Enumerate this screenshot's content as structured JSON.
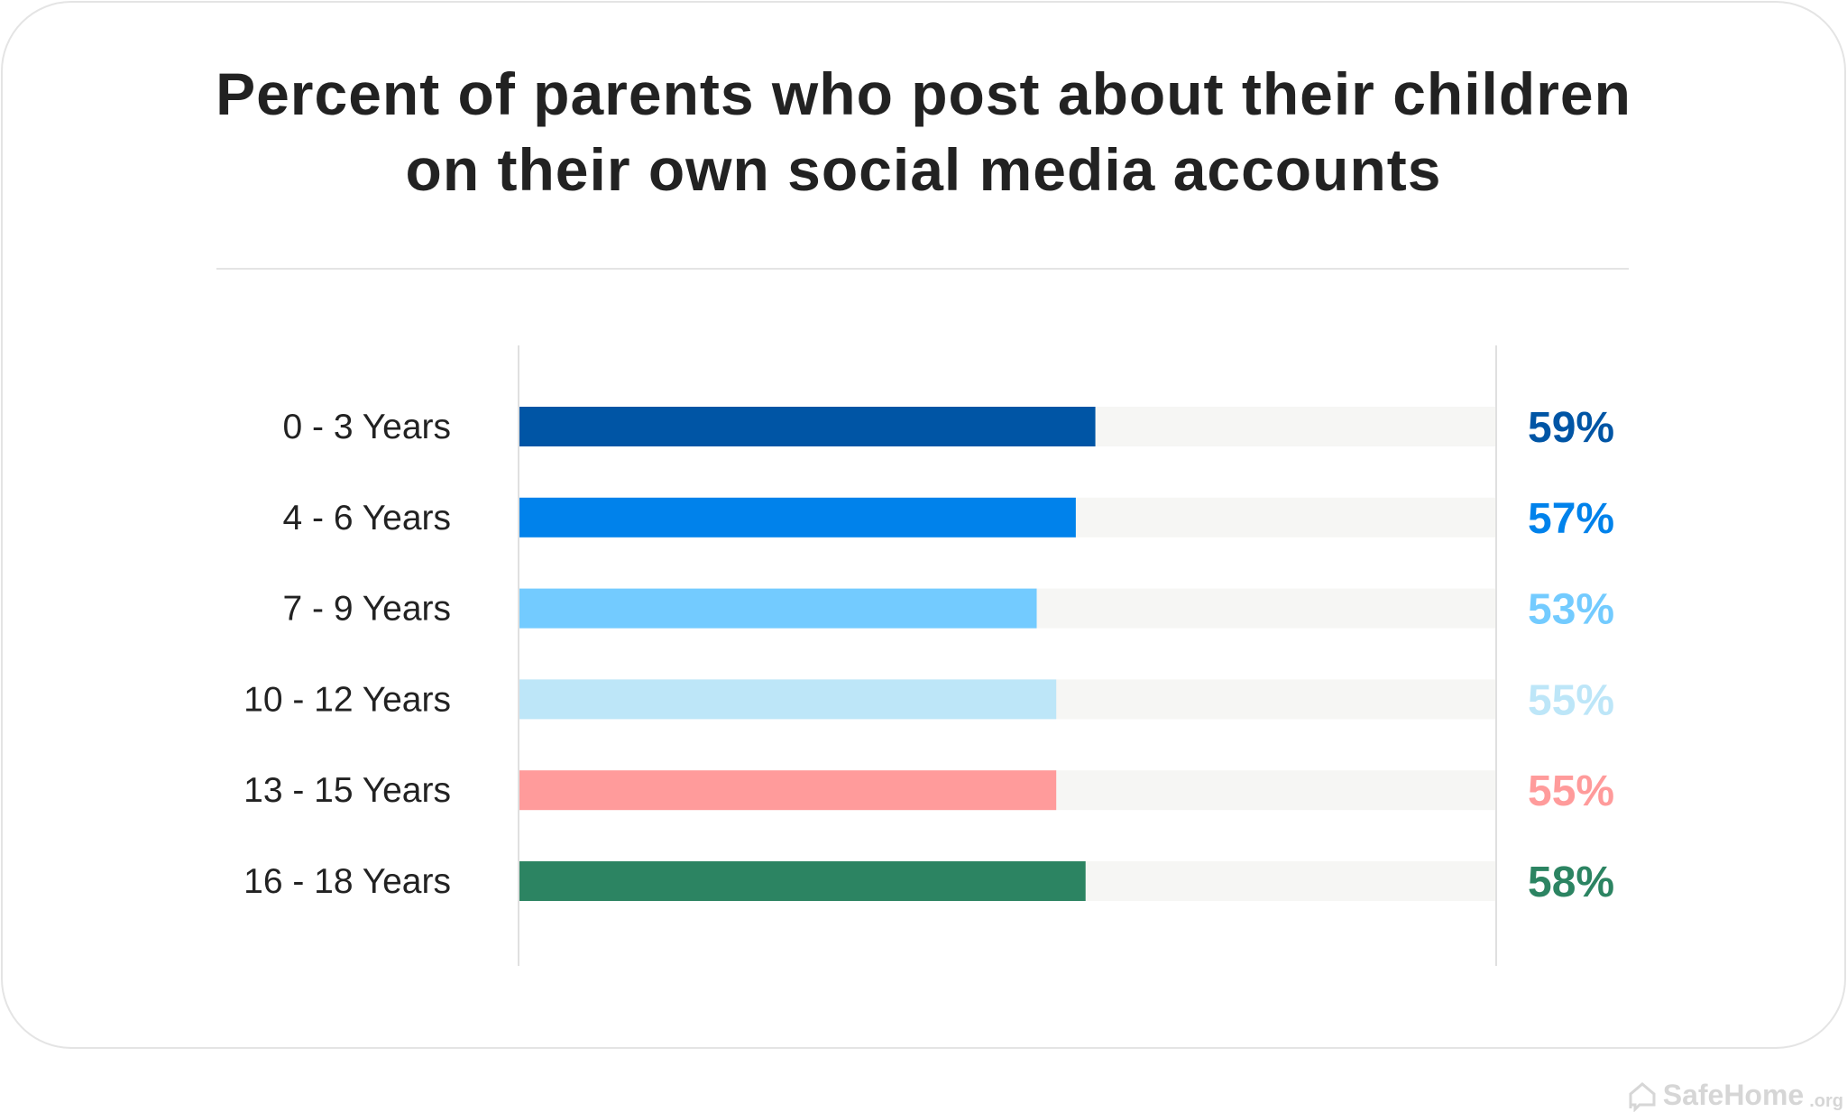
{
  "chart_data": {
    "type": "bar",
    "orientation": "horizontal",
    "title": "Percent of parents who post about their children on their own social media accounts",
    "title_lines": [
      "Percent of parents who post about their children",
      "on their own social media accounts"
    ],
    "categories": [
      "0 - 3 Years",
      "4 - 6 Years",
      "7 - 9 Years",
      "10 - 12 Years",
      "13 - 15 Years",
      "16 - 18 Years"
    ],
    "values": [
      59,
      57,
      53,
      55,
      55,
      58
    ],
    "value_labels": [
      "59%",
      "57%",
      "53%",
      "55%",
      "55%",
      "58%"
    ],
    "colors": [
      "#0055A5",
      "#0082EB",
      "#73CBFF",
      "#BDE6F8",
      "#FF9B9B",
      "#2C8462"
    ],
    "track_color": "#F6F6F4",
    "xlim": [
      0,
      100
    ],
    "grid": false,
    "legend": "none"
  },
  "branding": {
    "logo_text": "SafeHome",
    "logo_suffix": ".org",
    "icon": "house-chat-icon"
  }
}
